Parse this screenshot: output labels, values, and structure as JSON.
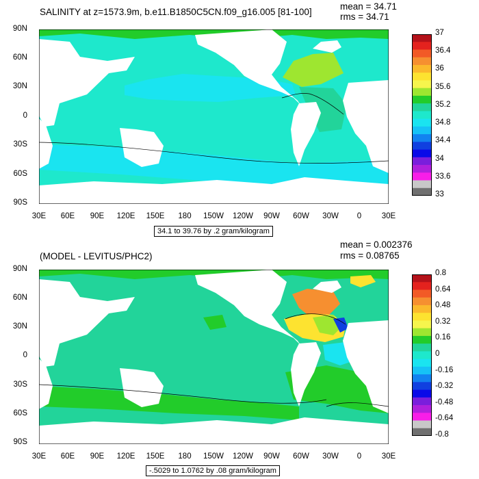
{
  "chart_data": [
    {
      "type": "heatmap",
      "title": "SALINITY at z=1573.9m, b.e11.B1850C5CN.f09_g16.005 [81-100]",
      "stats": {
        "mean": "mean = 34.71",
        "rms": "rms = 34.71"
      },
      "range_note": "34.1 to 39.76 by .2 gram/kilogram",
      "x_ticks": [
        "30E",
        "60E",
        "90E",
        "120E",
        "150E",
        "180",
        "150W",
        "120W",
        "90W",
        "60W",
        "30W",
        "0",
        "30E"
      ],
      "y_ticks": [
        "90N",
        "60N",
        "30N",
        "0",
        "30S",
        "60S",
        "90S"
      ],
      "xlim": [
        30,
        390
      ],
      "ylim": [
        -90,
        90
      ],
      "colorbar": {
        "labels": [
          "37",
          "36.4",
          "36",
          "35.6",
          "35.2",
          "34.8",
          "34.4",
          "34",
          "33.6",
          "33"
        ],
        "colors": [
          "#b4121a",
          "#e4221e",
          "#f25a26",
          "#f68f30",
          "#fbb92c",
          "#fde330",
          "#f6f54d",
          "#9ee630",
          "#22cc2a",
          "#22d49a",
          "#1ee8cc",
          "#1ae4f0",
          "#16c2f6",
          "#1282f0",
          "#1040e0",
          "#0a0ae8",
          "#7a1edc",
          "#b020dc",
          "#f81ee8",
          "#c8c8c8",
          "#707070"
        ]
      }
    },
    {
      "type": "heatmap",
      "title": "(MODEL - LEVITUS/PHC2)",
      "stats": {
        "mean": "mean = 0.002376",
        "rms": "rms = 0.08765"
      },
      "range_note": "-.5029 to 1.0762 by .08 gram/kilogram",
      "x_ticks": [
        "30E",
        "60E",
        "90E",
        "120E",
        "150E",
        "180",
        "150W",
        "120W",
        "90W",
        "60W",
        "30W",
        "0",
        "30E"
      ],
      "y_ticks": [
        "90N",
        "60N",
        "30N",
        "0",
        "30S",
        "60S",
        "90S"
      ],
      "xlim": [
        30,
        390
      ],
      "ylim": [
        -90,
        90
      ],
      "colorbar": {
        "labels": [
          "0.8",
          "0.64",
          "0.48",
          "0.32",
          "0.16",
          "0",
          "-0.16",
          "-0.32",
          "-0.48",
          "-0.64",
          "-0.8"
        ],
        "colors": [
          "#b4121a",
          "#e4221e",
          "#f25a26",
          "#f68f30",
          "#fbb92c",
          "#fde330",
          "#f6f54d",
          "#9ee630",
          "#22cc2a",
          "#22d49a",
          "#1ee8cc",
          "#1ae4f0",
          "#16c2f6",
          "#1282f0",
          "#1040e0",
          "#0a0ae8",
          "#7a1edc",
          "#b020dc",
          "#f81ee8",
          "#c8c8c8",
          "#707070"
        ]
      }
    }
  ]
}
